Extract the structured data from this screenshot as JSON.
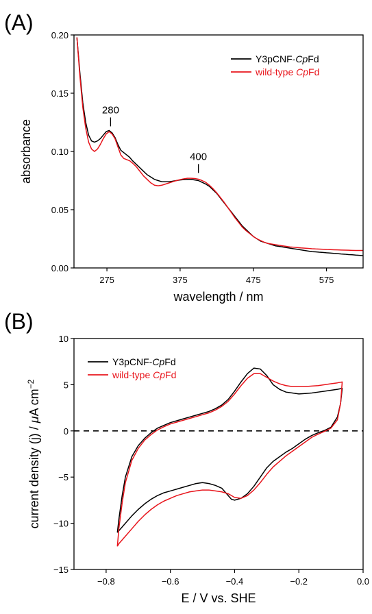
{
  "chart_data": [
    {
      "panel_label": "(A)",
      "type": "line",
      "xlabel": "wavelength / nm",
      "ylabel": "absorbance",
      "xlim": [
        230,
        625
      ],
      "ylim": [
        0.0,
        0.2
      ],
      "xticks": [
        275,
        375,
        475,
        575
      ],
      "xtick_labels": [
        "275",
        "375",
        "475",
        "575"
      ],
      "yticks": [
        0.0,
        0.05,
        0.1,
        0.15,
        0.2
      ],
      "ytick_labels": [
        "0.00",
        "0.05",
        "0.10",
        "0.15",
        "0.20"
      ],
      "legend_placement": "top-right",
      "grid": false,
      "annotations": [
        {
          "text": "280",
          "x": 280,
          "y": 0.118
        },
        {
          "text": "400",
          "x": 400,
          "y": 0.078
        }
      ],
      "series": [
        {
          "name": "Y3pCNF-CpFd",
          "name_parts": [
            {
              "t": "Y3pCNF-",
              "i": false
            },
            {
              "t": "Cp",
              "i": true
            },
            {
              "t": "Fd",
              "i": false
            }
          ],
          "color": "#000000",
          "x": [
            234,
            238,
            242,
            246,
            250,
            254,
            258,
            262,
            266,
            270,
            274,
            278,
            282,
            286,
            290,
            294,
            298,
            302,
            306,
            310,
            315,
            320,
            325,
            330,
            335,
            340,
            345,
            350,
            355,
            360,
            365,
            370,
            375,
            380,
            385,
            390,
            395,
            400,
            405,
            410,
            415,
            420,
            425,
            430,
            435,
            440,
            445,
            450,
            455,
            460,
            465,
            470,
            475,
            480,
            485,
            490,
            495,
            500,
            505,
            510,
            515,
            520,
            525,
            530,
            535,
            540,
            545,
            550,
            555,
            560,
            565,
            570,
            575,
            580,
            585,
            590,
            595,
            600,
            605,
            610,
            615,
            620,
            625
          ],
          "y": [
            0.198,
            0.168,
            0.142,
            0.125,
            0.114,
            0.109,
            0.108,
            0.109,
            0.111,
            0.114,
            0.117,
            0.118,
            0.116,
            0.112,
            0.106,
            0.101,
            0.099,
            0.097,
            0.095,
            0.092,
            0.089,
            0.086,
            0.083,
            0.08,
            0.078,
            0.076,
            0.075,
            0.074,
            0.074,
            0.074,
            0.0745,
            0.075,
            0.0755,
            0.0758,
            0.076,
            0.076,
            0.0755,
            0.075,
            0.0735,
            0.072,
            0.07,
            0.067,
            0.064,
            0.06,
            0.056,
            0.052,
            0.048,
            0.044,
            0.04,
            0.036,
            0.033,
            0.03,
            0.027,
            0.025,
            0.023,
            0.022,
            0.021,
            0.02,
            0.019,
            0.0185,
            0.018,
            0.0175,
            0.017,
            0.0165,
            0.016,
            0.0155,
            0.015,
            0.0145,
            0.014,
            0.0138,
            0.0135,
            0.0133,
            0.013,
            0.0128,
            0.0125,
            0.0123,
            0.012,
            0.0118,
            0.0115,
            0.0113,
            0.011,
            0.0108,
            0.0105
          ]
        },
        {
          "name": "wild-type CpFd",
          "name_parts": [
            {
              "t": "wild-type ",
              "i": false
            },
            {
              "t": "Cp",
              "i": true
            },
            {
              "t": "Fd",
              "i": false
            }
          ],
          "color": "#e8141b",
          "x": [
            234,
            238,
            242,
            246,
            250,
            254,
            258,
            262,
            266,
            270,
            274,
            278,
            282,
            286,
            290,
            294,
            298,
            302,
            306,
            310,
            315,
            320,
            325,
            330,
            335,
            340,
            345,
            350,
            355,
            360,
            365,
            370,
            375,
            380,
            385,
            390,
            395,
            400,
            405,
            410,
            415,
            420,
            425,
            430,
            435,
            440,
            445,
            450,
            455,
            460,
            465,
            470,
            475,
            480,
            485,
            490,
            495,
            500,
            505,
            510,
            515,
            520,
            525,
            530,
            535,
            540,
            545,
            550,
            555,
            560,
            565,
            570,
            575,
            580,
            585,
            590,
            595,
            600,
            605,
            610,
            615,
            620,
            625
          ],
          "y": [
            0.198,
            0.165,
            0.138,
            0.12,
            0.108,
            0.102,
            0.1,
            0.102,
            0.106,
            0.111,
            0.115,
            0.117,
            0.115,
            0.111,
            0.104,
            0.097,
            0.094,
            0.093,
            0.092,
            0.09,
            0.087,
            0.083,
            0.079,
            0.076,
            0.073,
            0.071,
            0.0705,
            0.071,
            0.072,
            0.073,
            0.074,
            0.075,
            0.0758,
            0.0765,
            0.077,
            0.077,
            0.0768,
            0.0762,
            0.075,
            0.0735,
            0.071,
            0.068,
            0.0645,
            0.0605,
            0.0565,
            0.052,
            0.0475,
            0.043,
            0.039,
            0.035,
            0.032,
            0.0295,
            0.027,
            0.025,
            0.0235,
            0.022,
            0.021,
            0.0205,
            0.02,
            0.0195,
            0.019,
            0.0185,
            0.018,
            0.0178,
            0.0175,
            0.0172,
            0.017,
            0.0168,
            0.0165,
            0.0163,
            0.0162,
            0.016,
            0.0158,
            0.0157,
            0.0156,
            0.0155,
            0.0154,
            0.0153,
            0.0152,
            0.0151,
            0.015,
            0.015,
            0.015
          ]
        }
      ]
    },
    {
      "panel_label": "(B)",
      "type": "line",
      "xlabel": "E / V vs. SHE",
      "ylabel": "current density (j) / μA cm⁻²",
      "xlim": [
        -0.9,
        0.0
      ],
      "ylim": [
        -15,
        10
      ],
      "xticks": [
        -0.8,
        -0.6,
        -0.4,
        -0.2,
        0.0
      ],
      "xtick_labels": [
        "−0.8",
        "−0.6",
        "−0.4",
        "−0.2",
        "0.0"
      ],
      "yticks": [
        -15,
        -10,
        -5,
        0,
        5,
        10
      ],
      "ytick_labels": [
        "−15",
        "−10",
        "−5",
        "0",
        "5",
        "10"
      ],
      "zero_line": "dashed",
      "legend_placement": "top-left",
      "grid": false,
      "series": [
        {
          "name": "Y3pCNF-CpFd",
          "name_parts": [
            {
              "t": "Y3pCNF-",
              "i": false
            },
            {
              "t": "Cp",
              "i": true
            },
            {
              "t": "Fd",
              "i": false
            }
          ],
          "color": "#000000",
          "x": [
            -0.765,
            -0.76,
            -0.75,
            -0.74,
            -0.72,
            -0.7,
            -0.68,
            -0.66,
            -0.64,
            -0.62,
            -0.6,
            -0.58,
            -0.56,
            -0.54,
            -0.52,
            -0.5,
            -0.48,
            -0.46,
            -0.44,
            -0.42,
            -0.4,
            -0.38,
            -0.36,
            -0.34,
            -0.32,
            -0.3,
            -0.28,
            -0.26,
            -0.24,
            -0.22,
            -0.2,
            -0.18,
            -0.16,
            -0.14,
            -0.12,
            -0.1,
            -0.08,
            -0.065,
            -0.065,
            -0.07,
            -0.08,
            -0.1,
            -0.12,
            -0.14,
            -0.16,
            -0.18,
            -0.2,
            -0.22,
            -0.24,
            -0.26,
            -0.28,
            -0.3,
            -0.32,
            -0.34,
            -0.36,
            -0.38,
            -0.4,
            -0.41,
            -0.42,
            -0.44,
            -0.46,
            -0.48,
            -0.5,
            -0.52,
            -0.54,
            -0.56,
            -0.58,
            -0.6,
            -0.62,
            -0.64,
            -0.66,
            -0.68,
            -0.7,
            -0.72,
            -0.74,
            -0.75,
            -0.76,
            -0.765
          ],
          "y": [
            -11.0,
            -9.5,
            -7.0,
            -5.0,
            -2.8,
            -1.6,
            -0.8,
            -0.2,
            0.3,
            0.6,
            0.9,
            1.1,
            1.3,
            1.5,
            1.7,
            1.9,
            2.1,
            2.4,
            2.8,
            3.4,
            4.3,
            5.3,
            6.2,
            6.8,
            6.7,
            6.0,
            5.0,
            4.5,
            4.2,
            4.1,
            4.0,
            4.05,
            4.1,
            4.2,
            4.3,
            4.4,
            4.5,
            4.6,
            4.6,
            3.0,
            1.5,
            0.4,
            0.05,
            -0.2,
            -0.5,
            -0.9,
            -1.4,
            -1.9,
            -2.3,
            -2.8,
            -3.3,
            -4.0,
            -5.0,
            -6.0,
            -6.8,
            -7.3,
            -7.5,
            -7.4,
            -7.0,
            -6.2,
            -5.9,
            -5.7,
            -5.6,
            -5.7,
            -5.9,
            -6.1,
            -6.3,
            -6.5,
            -6.7,
            -7.0,
            -7.4,
            -7.9,
            -8.5,
            -9.2,
            -10.0,
            -10.4,
            -10.8,
            -11.0
          ]
        },
        {
          "name": "wild-type CpFd",
          "name_parts": [
            {
              "t": "wild-type ",
              "i": false
            },
            {
              "t": "Cp",
              "i": true
            },
            {
              "t": "Fd",
              "i": false
            }
          ],
          "color": "#e8141b",
          "x": [
            -0.765,
            -0.76,
            -0.75,
            -0.74,
            -0.72,
            -0.7,
            -0.68,
            -0.66,
            -0.64,
            -0.62,
            -0.6,
            -0.58,
            -0.56,
            -0.54,
            -0.52,
            -0.5,
            -0.48,
            -0.46,
            -0.44,
            -0.42,
            -0.4,
            -0.38,
            -0.36,
            -0.34,
            -0.32,
            -0.3,
            -0.28,
            -0.26,
            -0.24,
            -0.22,
            -0.2,
            -0.18,
            -0.16,
            -0.14,
            -0.12,
            -0.1,
            -0.08,
            -0.065,
            -0.065,
            -0.07,
            -0.08,
            -0.1,
            -0.12,
            -0.14,
            -0.16,
            -0.18,
            -0.2,
            -0.22,
            -0.24,
            -0.26,
            -0.28,
            -0.3,
            -0.32,
            -0.34,
            -0.36,
            -0.38,
            -0.4,
            -0.41,
            -0.42,
            -0.44,
            -0.46,
            -0.48,
            -0.5,
            -0.52,
            -0.54,
            -0.56,
            -0.58,
            -0.6,
            -0.62,
            -0.64,
            -0.66,
            -0.68,
            -0.7,
            -0.72,
            -0.74,
            -0.75,
            -0.76,
            -0.765
          ],
          "y": [
            -12.5,
            -10.5,
            -7.8,
            -5.6,
            -3.2,
            -1.9,
            -1.0,
            -0.4,
            0.1,
            0.45,
            0.75,
            0.95,
            1.15,
            1.35,
            1.55,
            1.75,
            1.95,
            2.25,
            2.65,
            3.2,
            4.0,
            4.9,
            5.7,
            6.2,
            6.2,
            5.8,
            5.4,
            5.1,
            4.9,
            4.8,
            4.8,
            4.8,
            4.85,
            4.9,
            5.0,
            5.1,
            5.2,
            5.3,
            5.3,
            3.0,
            1.2,
            0.3,
            -0.05,
            -0.35,
            -0.7,
            -1.2,
            -1.7,
            -2.2,
            -2.7,
            -3.3,
            -3.9,
            -4.7,
            -5.6,
            -6.4,
            -7.0,
            -7.3,
            -7.2,
            -7.0,
            -6.8,
            -6.6,
            -6.5,
            -6.4,
            -6.4,
            -6.5,
            -6.6,
            -6.8,
            -7.0,
            -7.3,
            -7.6,
            -8.0,
            -8.5,
            -9.1,
            -9.8,
            -10.6,
            -11.4,
            -11.8,
            -12.2,
            -12.5
          ]
        }
      ]
    }
  ]
}
